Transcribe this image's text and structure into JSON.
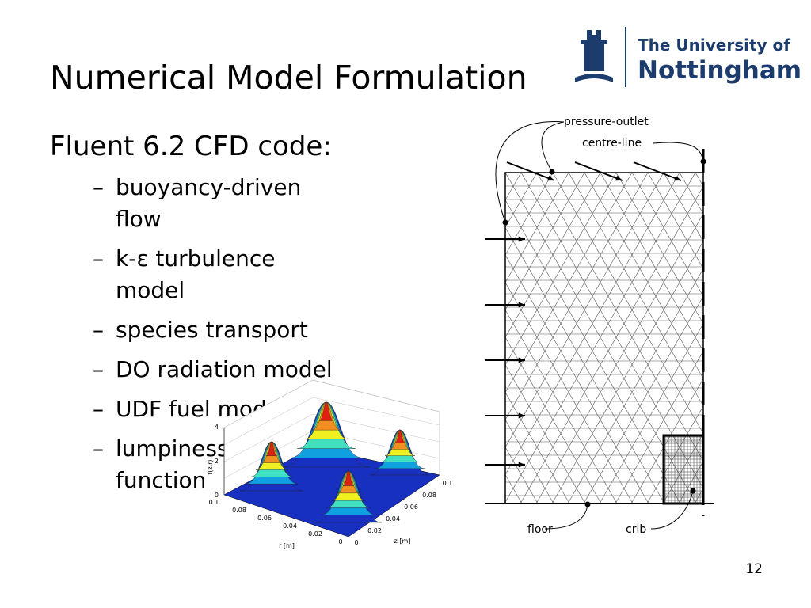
{
  "header": {
    "title": "Numerical Model Formulation",
    "logo_line1": "The University of",
    "logo_line2": "Nottingham"
  },
  "content": {
    "heading": "Fluent 6.2 CFD code:",
    "bullet_marker": "–",
    "bullets": [
      [
        "buoyancy-driven",
        "flow"
      ],
      [
        "k-ε turbulence",
        "model"
      ],
      [
        "species transport"
      ],
      [
        "DO radiation model"
      ],
      [
        "UDF fuel model"
      ],
      [
        "lumpiness",
        "function"
      ]
    ]
  },
  "mesh_figure": {
    "labels": {
      "outlet": "pressure-outlet",
      "centre": "centre-line",
      "floor": "floor",
      "crib": "crib"
    }
  },
  "surface_plot": {
    "vertical_axis_label": "f(z,r)",
    "vertical_ticks": [
      "0",
      "2",
      "4"
    ],
    "r_label": "r [m]",
    "r_ticks": [
      "0.1",
      "0.08",
      "0.06",
      "0.04",
      "0.02",
      "0"
    ],
    "z_label": "z [m]",
    "z_ticks": [
      "0",
      "0.02",
      "0.04",
      "0.06",
      "0.08",
      "0.1"
    ]
  },
  "footer": {
    "page_number": "12"
  }
}
